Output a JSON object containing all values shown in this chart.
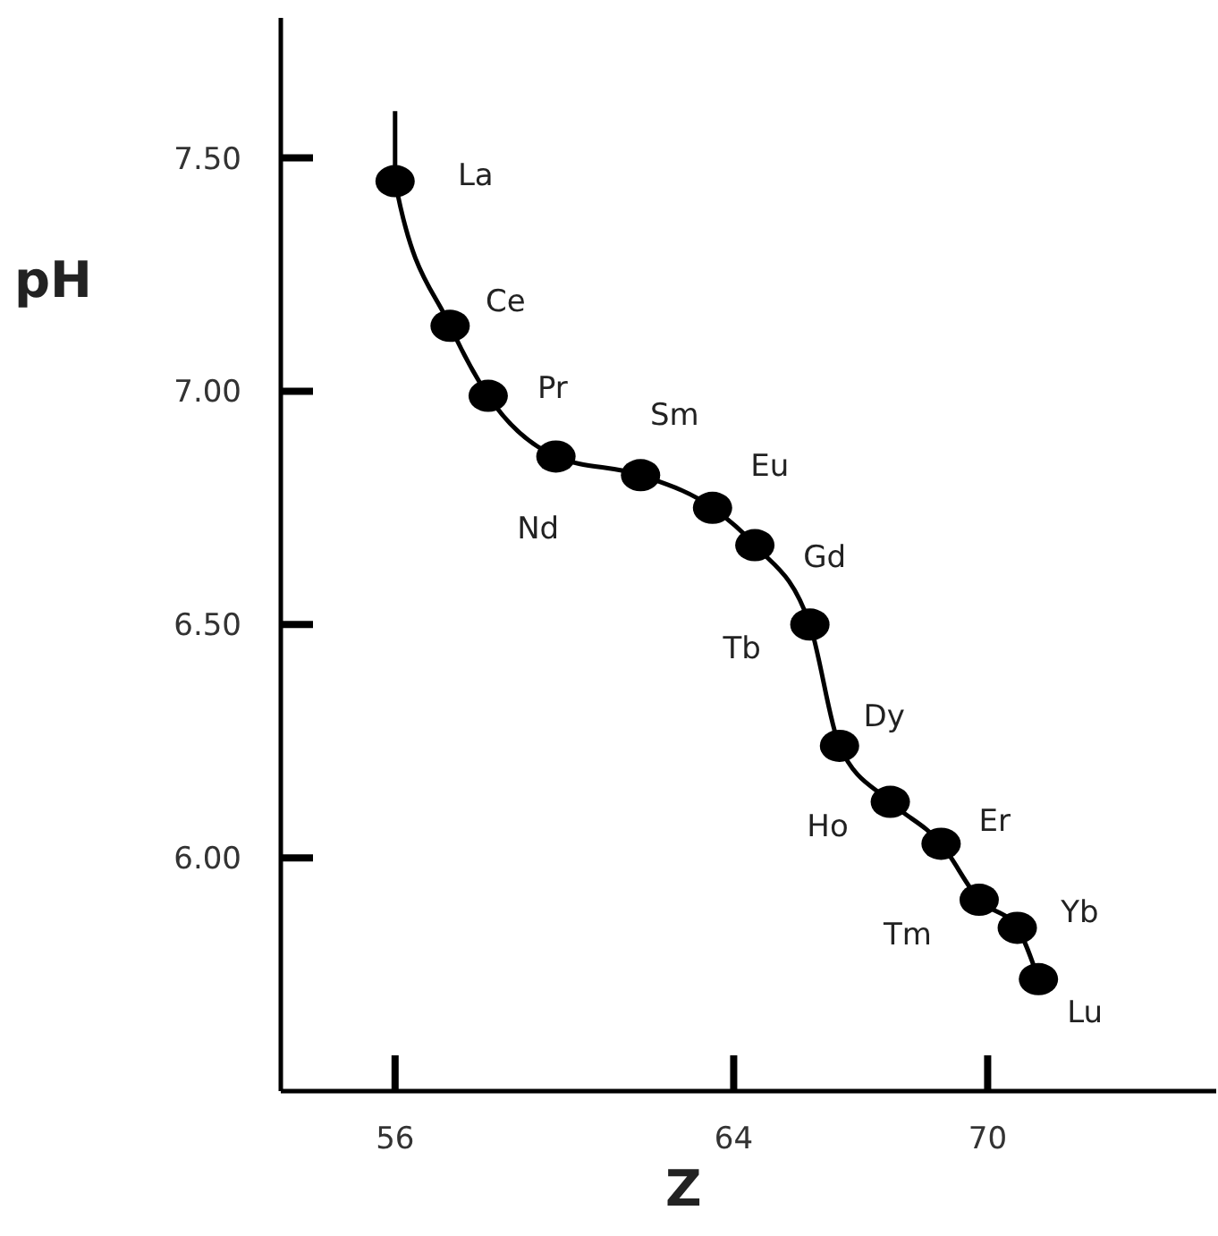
{
  "chart_data": {
    "type": "line",
    "xlabel": "Z",
    "ylabel": "pH",
    "xlim": [
      53.3,
      75.4
    ],
    "ylim": [
      5.5,
      7.8
    ],
    "xticks": [
      56,
      64,
      70
    ],
    "yticks": [
      {
        "value": 6,
        "label": "6.00"
      },
      {
        "value": 6.5,
        "label": "6.50"
      },
      {
        "value": 7,
        "label": "7.00"
      },
      {
        "value": 7.5,
        "label": "7.50"
      }
    ],
    "grid": false,
    "legend": false,
    "series": [
      {
        "color": "#000000",
        "marker": "none",
        "x": [
          56,
          56,
          57.3,
          58.2,
          59.8,
          61.8,
          63.5,
          64.5,
          65.8,
          66.5,
          67.7,
          68.9,
          69.8,
          70.7,
          71.2
        ],
        "values": [
          7.6,
          7.45,
          7.14,
          6.99,
          6.86,
          6.82,
          6.75,
          6.67,
          6.5,
          6.24,
          6.12,
          6.03,
          5.91,
          5.85,
          5.74
        ]
      },
      {
        "type": "scatter",
        "color": "#000000",
        "marker": "circle",
        "x": [
          56,
          57.3,
          58.2,
          59.8,
          61.8,
          63.5,
          64.5,
          65.8,
          66.5,
          67.7,
          68.9,
          69.8,
          70.7,
          71.2
        ],
        "values": [
          7.45,
          7.14,
          6.99,
          6.86,
          6.82,
          6.75,
          6.67,
          6.5,
          6.24,
          6.12,
          6.03,
          5.91,
          5.85,
          5.74
        ],
        "value_labels": [
          "La",
          "Ce",
          "Pr",
          "Nd",
          "Sm",
          "Eu",
          "Gd",
          "Tb",
          "Dy",
          "Ho",
          "Er",
          "Tm",
          "Yb",
          "Lu"
        ]
      }
    ]
  }
}
